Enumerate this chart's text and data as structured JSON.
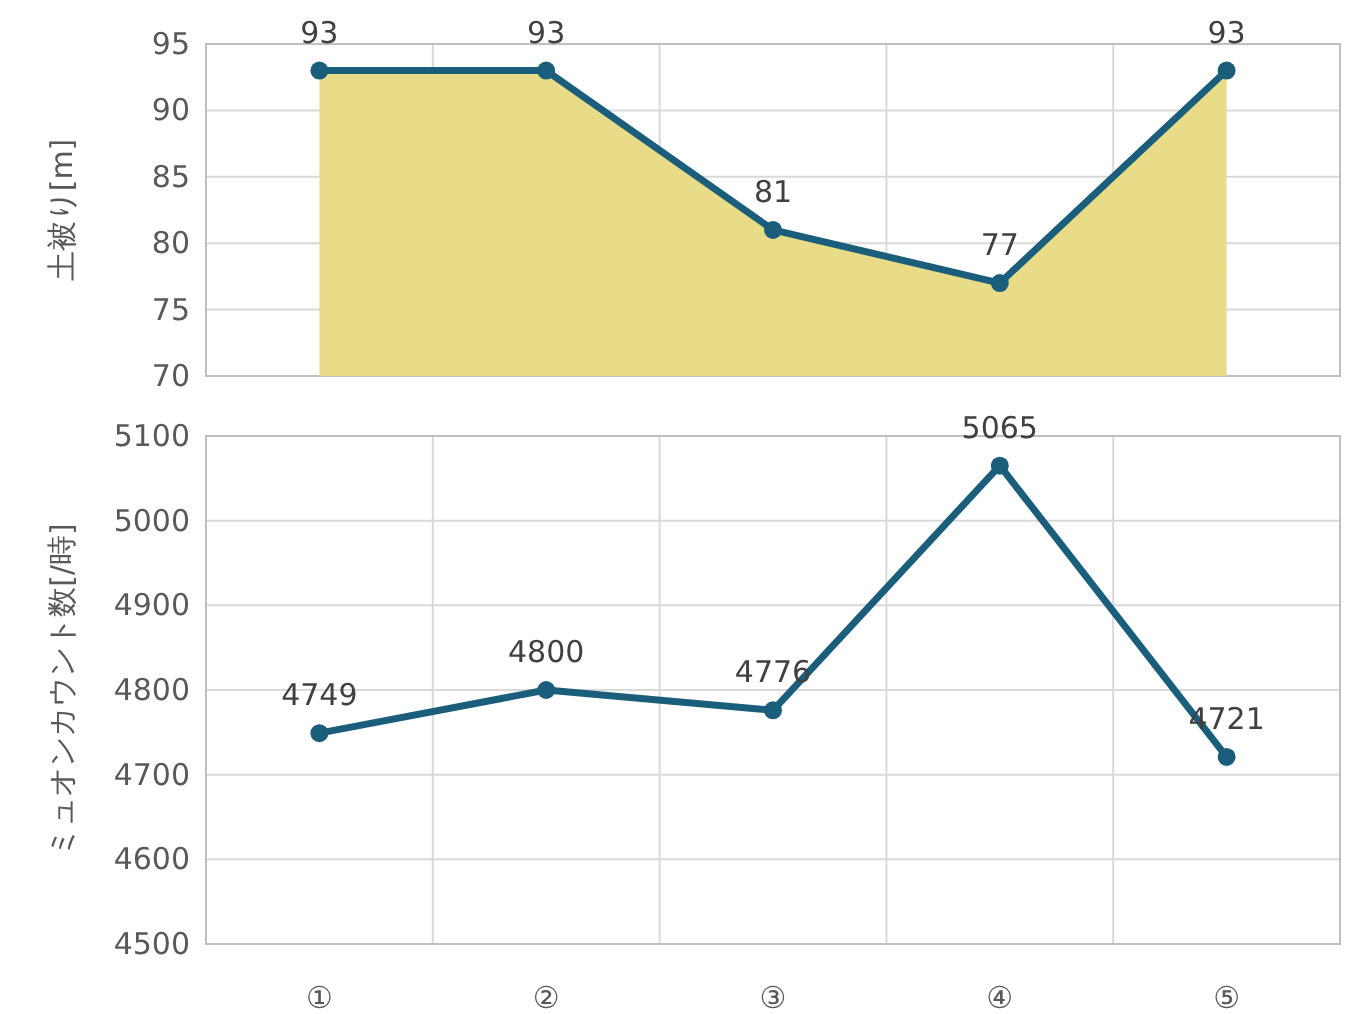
{
  "chart_data": [
    {
      "type": "area",
      "ylabel": "土被り[m]",
      "categories": [
        null,
        null,
        null,
        null,
        null
      ],
      "ylim": [
        70,
        95
      ],
      "yticks": [
        70,
        75,
        80,
        85,
        90,
        95
      ],
      "grid": true,
      "tick_labels": "y",
      "series": [
        {
          "color": "#e8dc88",
          "values": [
            93,
            93,
            81,
            77,
            93
          ]
        },
        {
          "type": "line",
          "marker": "circle",
          "color": "#1b5e7b",
          "values": [
            93,
            93,
            81,
            77,
            93
          ],
          "value_labels": [
            "93",
            "93",
            "81",
            "77",
            "93"
          ]
        }
      ]
    },
    {
      "type": "line",
      "ylabel": "ミュオンカウント数[/時]",
      "categories": [
        "①",
        "②",
        "③",
        "④",
        "⑤"
      ],
      "ylim": [
        4500,
        5100
      ],
      "yticks": [
        4500,
        4600,
        4700,
        4800,
        4900,
        5000,
        5100
      ],
      "grid": true,
      "data_labels": true,
      "marker": "circle",
      "series": [
        {
          "color": "#1b5e7b",
          "values": [
            4749,
            4800,
            4776,
            5065,
            4721
          ]
        }
      ]
    }
  ]
}
